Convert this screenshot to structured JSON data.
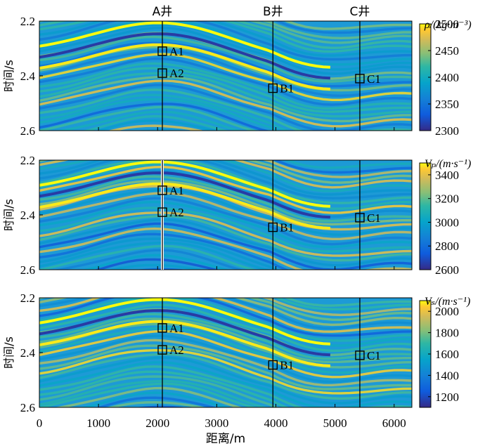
{
  "chart_data": {
    "type": "heatmap",
    "x_axis": {
      "label": "距离/m",
      "range": [
        0,
        6300
      ],
      "ticks": [
        0,
        1000,
        2000,
        3000,
        4000,
        5000,
        6000
      ],
      "tick_labels": [
        "0",
        "1000",
        "2000",
        "3000",
        "4000",
        "5000",
        "6000"
      ]
    },
    "wells": [
      {
        "name": "A井",
        "x": 2080
      },
      {
        "name": "B井",
        "x": 3950
      },
      {
        "name": "C井",
        "x": 5420
      }
    ],
    "panels": [
      {
        "id": "rho",
        "colorbar_label": "ρ/(kg·m⁻³)",
        "ylabel": "时间/s",
        "ylim": [
          2.2,
          2.6
        ],
        "yticks": [
          2.2,
          2.4,
          2.6
        ],
        "ytick_labels": [
          "2.2",
          "2.4",
          "2.6"
        ],
        "colorbar_ticks": [
          2300,
          2350,
          2400,
          2450,
          2500
        ],
        "colorbar_range": [
          2300,
          2500
        ],
        "markers": [
          {
            "label": "A1",
            "x": 2080,
            "t": 2.31
          },
          {
            "label": "A2",
            "x": 2080,
            "t": 2.39
          },
          {
            "label": "B1",
            "x": 3950,
            "t": 2.445
          },
          {
            "label": "C1",
            "x": 5420,
            "t": 2.41
          }
        ]
      },
      {
        "id": "vp",
        "colorbar_label": "Vₚ/(m·s⁻¹)",
        "ylabel": "时间/s",
        "ylim": [
          2.2,
          2.6
        ],
        "yticks": [
          2.2,
          2.4,
          2.6
        ],
        "ytick_labels": [
          "2.2",
          "2.4",
          "2.6"
        ],
        "colorbar_ticks": [
          2600,
          2800,
          3000,
          3200,
          3400
        ],
        "colorbar_range": [
          2600,
          3500
        ],
        "markers": [
          {
            "label": "A1",
            "x": 2080,
            "t": 2.31
          },
          {
            "label": "A2",
            "x": 2080,
            "t": 2.39
          },
          {
            "label": "B1",
            "x": 3950,
            "t": 2.445
          },
          {
            "label": "C1",
            "x": 5420,
            "t": 2.41
          }
        ]
      },
      {
        "id": "vs",
        "colorbar_label": "Vₛ/(m·s⁻¹)",
        "ylabel": "时间/s",
        "ylim": [
          2.2,
          2.6
        ],
        "yticks": [
          2.2,
          2.4,
          2.6
        ],
        "ytick_labels": [
          "2.2",
          "2.4",
          "2.6"
        ],
        "colorbar_ticks": [
          1200,
          1400,
          1600,
          1800,
          2000
        ],
        "colorbar_range": [
          1100,
          2100
        ],
        "markers": [
          {
            "label": "A1",
            "x": 2080,
            "t": 2.31
          },
          {
            "label": "A2",
            "x": 2080,
            "t": 2.39
          },
          {
            "label": "B1",
            "x": 3950,
            "t": 2.445
          },
          {
            "label": "C1",
            "x": 5420,
            "t": 2.41
          }
        ]
      }
    ]
  }
}
